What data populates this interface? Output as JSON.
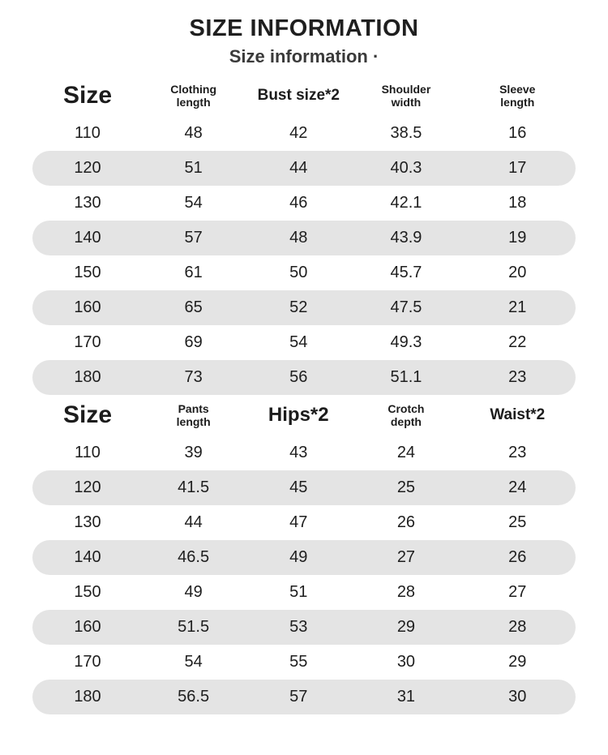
{
  "page": {
    "title": "SIZE INFORMATION",
    "subtitle": "Size information ·"
  },
  "colors": {
    "row_stripe": "#e4e4e4",
    "text": "#1f1f1f",
    "background": "#ffffff"
  },
  "tables": [
    {
      "name": "tops-size-table",
      "columns": [
        {
          "label": "Size",
          "emphasis": "xl"
        },
        {
          "label": "Clothing\nlength",
          "emphasis": "sm"
        },
        {
          "label": "Bust size*2",
          "emphasis": "md"
        },
        {
          "label": "Shoulder\nwidth",
          "emphasis": "sm"
        },
        {
          "label": "Sleeve\nlength",
          "emphasis": "sm"
        }
      ],
      "rows": [
        [
          "110",
          "48",
          "42",
          "38.5",
          "16"
        ],
        [
          "120",
          "51",
          "44",
          "40.3",
          "17"
        ],
        [
          "130",
          "54",
          "46",
          "42.1",
          "18"
        ],
        [
          "140",
          "57",
          "48",
          "43.9",
          "19"
        ],
        [
          "150",
          "61",
          "50",
          "45.7",
          "20"
        ],
        [
          "160",
          "65",
          "52",
          "47.5",
          "21"
        ],
        [
          "170",
          "69",
          "54",
          "49.3",
          "22"
        ],
        [
          "180",
          "73",
          "56",
          "51.1",
          "23"
        ]
      ]
    },
    {
      "name": "pants-size-table",
      "columns": [
        {
          "label": "Size",
          "emphasis": "xl"
        },
        {
          "label": "Pants\nlength",
          "emphasis": "sm"
        },
        {
          "label": "Hips*2",
          "emphasis": "lg"
        },
        {
          "label": "Crotch\ndepth",
          "emphasis": "sm"
        },
        {
          "label": "Waist*2",
          "emphasis": "md"
        }
      ],
      "rows": [
        [
          "110",
          "39",
          "43",
          "24",
          "23"
        ],
        [
          "120",
          "41.5",
          "45",
          "25",
          "24"
        ],
        [
          "130",
          "44",
          "47",
          "26",
          "25"
        ],
        [
          "140",
          "46.5",
          "49",
          "27",
          "26"
        ],
        [
          "150",
          "49",
          "51",
          "28",
          "27"
        ],
        [
          "160",
          "51.5",
          "53",
          "29",
          "28"
        ],
        [
          "170",
          "54",
          "55",
          "30",
          "29"
        ],
        [
          "180",
          "56.5",
          "57",
          "31",
          "30"
        ]
      ]
    }
  ]
}
